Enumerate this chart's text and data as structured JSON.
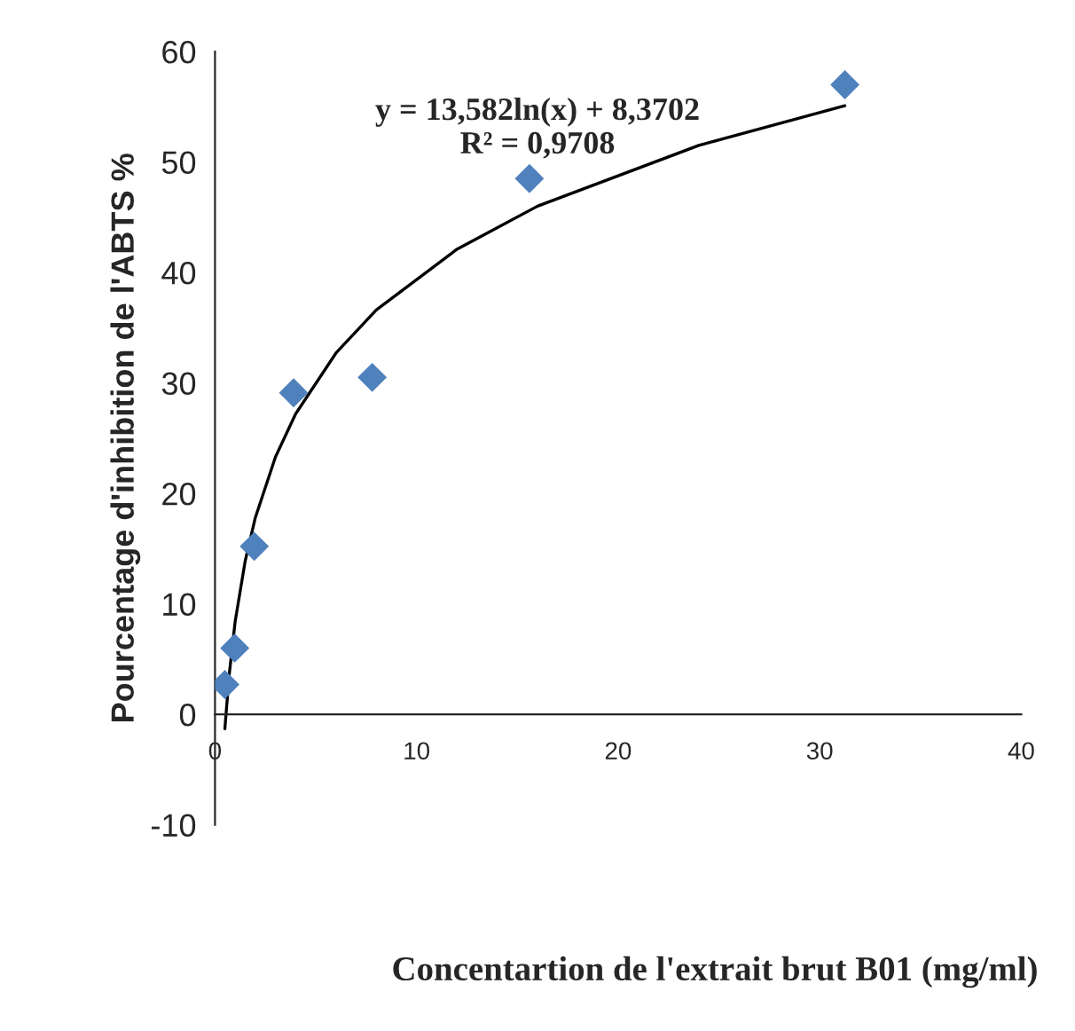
{
  "chart_data": {
    "type": "scatter",
    "xlabel": "Concentartion de l'extrait brut B01 (mg/ml)",
    "ylabel": "Pourcentage d'inhibition de l'ABTS %",
    "series": [
      {
        "color": "#4f81bd",
        "marker": "diamond",
        "x": [
          0.49,
          0.98,
          1.95,
          3.9,
          7.8,
          15.6,
          31.25
        ],
        "values": [
          2.7,
          6,
          15.2,
          29.1,
          30.5,
          48.5,
          57
        ]
      },
      {
        "type": "line",
        "color": "#000000",
        "marker": "none",
        "line_style": "solid",
        "x": [
          0.49,
          0.7,
          1,
          1.5,
          2,
          3,
          4,
          6,
          8,
          12,
          16,
          24,
          31.25
        ],
        "values": [
          -1.3,
          3.5,
          8.4,
          13.9,
          17.8,
          23.3,
          27.2,
          32.7,
          36.6,
          42.1,
          46,
          51.5,
          55.1
        ]
      }
    ],
    "annotations": [
      "y = 13,582ln(x) + 8,3702\nR² = 0,9708"
    ],
    "xlim": [
      0,
      40
    ],
    "xticks": [
      0,
      10,
      20,
      30,
      40
    ],
    "ylim": [
      -10,
      60
    ],
    "yticks": [
      -10,
      0,
      10,
      20,
      30,
      40,
      50,
      60
    ],
    "grid": false,
    "legend": false
  }
}
